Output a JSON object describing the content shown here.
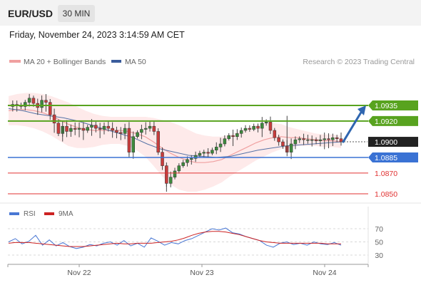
{
  "header": {
    "symbol": "EUR/USD",
    "timeframe": "30 MIN"
  },
  "datetime": "Friday, November 24, 2023 3:14:59 AM CET",
  "legend": {
    "ma20_bb": "MA 20 + Bollinger Bands",
    "ma50": "MA 50",
    "rsi": "RSI",
    "ma9": "9MA"
  },
  "attribution": "Research © 2023 Trading Central",
  "colors": {
    "green": "#58a31f",
    "blue": "#3a72d4",
    "red": "#e03030",
    "ma50": "#5572a6",
    "ma20": "#f0a0a0",
    "band": "#fde3e3",
    "arrow": "#2f66b0",
    "current": "#222222"
  },
  "chart_data": [
    {
      "type": "candlestick",
      "xlabel": "",
      "ylabel": "",
      "x_ticks": [
        "Nov 22",
        "Nov 23",
        "Nov 24"
      ],
      "ylim": [
        1.0845,
        1.0955
      ],
      "levels": [
        {
          "label": "1.0935",
          "value": 1.0935,
          "role": "resistance",
          "color": "#58a31f"
        },
        {
          "label": "1.0920",
          "value": 1.092,
          "role": "resistance",
          "color": "#58a31f"
        },
        {
          "label": "1.0900",
          "value": 1.09,
          "role": "current price",
          "color": "#222222"
        },
        {
          "label": "1.0885",
          "value": 1.0885,
          "role": "pivot",
          "color": "#3a72d4"
        },
        {
          "label": "1.0870",
          "value": 1.087,
          "role": "support",
          "color": "#e03030"
        },
        {
          "label": "1.0850",
          "value": 1.085,
          "role": "support",
          "color": "#e03030"
        }
      ],
      "close_path": [
        1.0934,
        1.0936,
        1.0935,
        1.0934,
        1.0938,
        1.0942,
        1.0937,
        1.0933,
        1.094,
        1.0938,
        1.0926,
        1.0918,
        1.0908,
        1.0915,
        1.091,
        1.0913,
        1.0912,
        1.0913,
        1.0911,
        1.0914,
        1.0916,
        1.0913,
        1.0912,
        1.0915,
        1.0913,
        1.0911,
        1.0909,
        1.0908,
        1.0913,
        1.089,
        1.0905,
        1.0909,
        1.0912,
        1.0913,
        1.0915,
        1.091,
        1.089,
        1.0877,
        1.086,
        1.0866,
        1.0872,
        1.0877,
        1.088,
        1.0883,
        1.0884,
        1.0887,
        1.0889,
        1.089,
        1.0889,
        1.0892,
        1.0895,
        1.0898,
        1.0903,
        1.0906,
        1.0905,
        1.0908,
        1.0911,
        1.0913,
        1.0912,
        1.0915,
        1.0913,
        1.0918,
        1.0919,
        1.0911,
        1.0904,
        1.09,
        1.0896,
        1.089,
        1.0898,
        1.0902,
        1.0903,
        1.0902,
        1.0902,
        1.0902,
        1.0901,
        1.0902,
        1.0903,
        1.0902,
        1.0904,
        1.0903,
        1.09
      ],
      "ma20": [
        1.093,
        1.0931,
        1.0931,
        1.093,
        1.0928,
        1.0925,
        1.0921,
        1.0917,
        1.0914,
        1.0912,
        1.0911,
        1.0911,
        1.0911,
        1.0911,
        1.091,
        1.0908,
        1.0905,
        1.09,
        1.0894,
        1.0889,
        1.0885,
        1.0882,
        1.088,
        1.088,
        1.0881,
        1.0883,
        1.0887,
        1.0891,
        1.0895,
        1.0899,
        1.0902,
        1.0904,
        1.0905,
        1.0904,
        1.0904,
        1.0903,
        1.0902,
        1.0901,
        1.0901,
        1.09
      ],
      "ma50": [
        1.0932,
        1.093,
        1.0927,
        1.0925,
        1.0923,
        1.092,
        1.0916,
        1.0912,
        1.0908,
        1.0904,
        1.0898,
        1.0893,
        1.089,
        1.0887,
        1.0886,
        1.0885,
        1.0886,
        1.0889,
        1.0892,
        1.0894,
        1.0896,
        1.0897,
        1.0898,
        1.0899,
        1.09
      ],
      "forecast_arrow": {
        "from": 1.09,
        "to": 1.0935
      }
    },
    {
      "type": "line",
      "title": "",
      "y_ticks": [
        "70",
        "50",
        "30"
      ],
      "ylim": [
        20,
        80
      ],
      "series": [
        {
          "name": "RSI",
          "color": "#4a78d4",
          "values": [
            50,
            55,
            47,
            51,
            60,
            45,
            53,
            44,
            49,
            43,
            40,
            42,
            46,
            44,
            48,
            50,
            45,
            52,
            44,
            48,
            42,
            56,
            51,
            45,
            49,
            47,
            52,
            55,
            60,
            65,
            70,
            68,
            71,
            64,
            62,
            58,
            55,
            52,
            45,
            42,
            48,
            50,
            46,
            48,
            45,
            50,
            47,
            46,
            49,
            45
          ]
        },
        {
          "name": "9MA",
          "color": "#cc2222",
          "values": [
            48,
            49,
            49,
            49,
            48,
            47,
            46,
            45,
            44,
            43,
            43,
            43,
            44,
            45,
            46,
            47,
            48,
            47,
            47,
            48,
            48,
            48,
            49,
            50,
            51,
            53,
            56,
            60,
            63,
            65,
            66,
            66,
            65,
            63,
            61,
            58,
            55,
            52,
            50,
            49,
            48,
            48,
            48,
            48,
            48,
            48,
            48,
            47,
            47,
            47
          ]
        }
      ]
    }
  ]
}
